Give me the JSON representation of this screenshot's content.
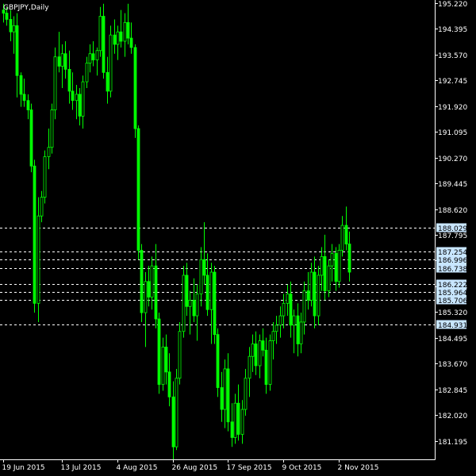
{
  "chart_data": {
    "type": "candlestick",
    "title": "GBPJPY,Daily",
    "symbol": "GBPJPY",
    "timeframe": "Daily",
    "ylim": [
      180.6,
      195.22
    ],
    "y_ticks": [
      "195.220",
      "194.395",
      "193.570",
      "192.745",
      "191.920",
      "191.095",
      "190.270",
      "189.445",
      "188.620",
      "187.795",
      "186.970",
      "186.145",
      "185.320",
      "184.495",
      "183.670",
      "182.845",
      "182.020",
      "181.195"
    ],
    "x_ticks": [
      "19 Jun 2015",
      "13 Jul 2015",
      "4 Aug 2015",
      "26 Aug 2015",
      "17 Sep 2015",
      "9 Oct 2015",
      "2 Nov 2015"
    ],
    "x_tick_index": [
      0,
      17,
      33,
      49,
      65,
      81,
      97
    ],
    "horizontal_levels": [
      "188.029",
      "187.254",
      "186.996",
      "186.738",
      "186.222",
      "185.964",
      "185.706",
      "184.931"
    ],
    "colors": {
      "background": "#000000",
      "candle": "#00ff00",
      "axis": "#ffffff",
      "level_line": "#ffffff",
      "label_box": "#c8e6ff"
    },
    "candles": [
      {
        "o": 195.0,
        "h": 195.2,
        "l": 194.6,
        "c": 194.9
      },
      {
        "o": 194.9,
        "h": 195.1,
        "l": 194.5,
        "c": 194.7
      },
      {
        "o": 194.7,
        "h": 195.0,
        "l": 194.0,
        "c": 194.3
      },
      {
        "o": 194.3,
        "h": 194.8,
        "l": 193.6,
        "c": 194.5
      },
      {
        "o": 194.5,
        "h": 194.9,
        "l": 192.2,
        "c": 192.9
      },
      {
        "o": 192.9,
        "h": 193.0,
        "l": 191.9,
        "c": 192.3
      },
      {
        "o": 192.3,
        "h": 192.8,
        "l": 191.9,
        "c": 192.1
      },
      {
        "o": 192.1,
        "h": 192.3,
        "l": 191.5,
        "c": 191.8
      },
      {
        "o": 191.8,
        "h": 192.0,
        "l": 189.8,
        "c": 190.0
      },
      {
        "o": 190.0,
        "h": 190.2,
        "l": 185.3,
        "c": 185.6
      },
      {
        "o": 185.6,
        "h": 189.0,
        "l": 185.0,
        "c": 188.4
      },
      {
        "o": 188.4,
        "h": 189.2,
        "l": 188.2,
        "c": 189.0
      },
      {
        "o": 189.0,
        "h": 190.5,
        "l": 188.8,
        "c": 190.3
      },
      {
        "o": 190.3,
        "h": 191.2,
        "l": 189.9,
        "c": 190.6
      },
      {
        "o": 190.6,
        "h": 192.0,
        "l": 190.4,
        "c": 191.8
      },
      {
        "o": 191.8,
        "h": 193.8,
        "l": 191.5,
        "c": 193.5
      },
      {
        "o": 193.5,
        "h": 194.3,
        "l": 193.0,
        "c": 193.2
      },
      {
        "o": 193.2,
        "h": 193.9,
        "l": 192.5,
        "c": 193.6
      },
      {
        "o": 193.6,
        "h": 194.0,
        "l": 192.8,
        "c": 193.1
      },
      {
        "o": 193.1,
        "h": 193.7,
        "l": 192.0,
        "c": 192.4
      },
      {
        "o": 192.4,
        "h": 193.0,
        "l": 191.8,
        "c": 192.1
      },
      {
        "o": 192.1,
        "h": 192.6,
        "l": 191.5,
        "c": 192.3
      },
      {
        "o": 192.3,
        "h": 192.5,
        "l": 191.3,
        "c": 191.6
      },
      {
        "o": 191.6,
        "h": 192.9,
        "l": 191.2,
        "c": 192.7
      },
      {
        "o": 192.7,
        "h": 193.5,
        "l": 192.5,
        "c": 193.3
      },
      {
        "o": 193.3,
        "h": 193.9,
        "l": 193.0,
        "c": 193.6
      },
      {
        "o": 193.6,
        "h": 194.0,
        "l": 193.2,
        "c": 193.4
      },
      {
        "o": 193.4,
        "h": 193.8,
        "l": 192.9,
        "c": 193.7
      },
      {
        "o": 193.7,
        "h": 195.1,
        "l": 193.5,
        "c": 194.8
      },
      {
        "o": 194.8,
        "h": 195.2,
        "l": 192.8,
        "c": 193.0
      },
      {
        "o": 193.0,
        "h": 193.5,
        "l": 192.0,
        "c": 192.4
      },
      {
        "o": 192.4,
        "h": 194.5,
        "l": 192.2,
        "c": 194.2
      },
      {
        "o": 194.2,
        "h": 194.7,
        "l": 193.6,
        "c": 193.9
      },
      {
        "o": 193.9,
        "h": 194.5,
        "l": 193.4,
        "c": 194.3
      },
      {
        "o": 194.3,
        "h": 195.0,
        "l": 193.8,
        "c": 194.0
      },
      {
        "o": 194.0,
        "h": 194.9,
        "l": 193.5,
        "c": 194.6
      },
      {
        "o": 194.6,
        "h": 195.2,
        "l": 193.9,
        "c": 194.1
      },
      {
        "o": 194.1,
        "h": 194.6,
        "l": 193.6,
        "c": 193.8
      },
      {
        "o": 193.8,
        "h": 193.9,
        "l": 190.9,
        "c": 191.2
      },
      {
        "o": 191.2,
        "h": 191.3,
        "l": 187.0,
        "c": 187.3
      },
      {
        "o": 187.3,
        "h": 187.5,
        "l": 185.0,
        "c": 185.3
      },
      {
        "o": 185.3,
        "h": 186.6,
        "l": 184.2,
        "c": 186.3
      },
      {
        "o": 186.3,
        "h": 186.8,
        "l": 185.5,
        "c": 185.8
      },
      {
        "o": 185.8,
        "h": 187.1,
        "l": 185.4,
        "c": 186.8
      },
      {
        "o": 186.8,
        "h": 187.5,
        "l": 184.8,
        "c": 185.1
      },
      {
        "o": 185.1,
        "h": 185.3,
        "l": 182.7,
        "c": 183.0
      },
      {
        "o": 183.0,
        "h": 184.5,
        "l": 182.8,
        "c": 184.2
      },
      {
        "o": 184.2,
        "h": 184.6,
        "l": 183.0,
        "c": 183.4
      },
      {
        "o": 183.4,
        "h": 184.0,
        "l": 182.3,
        "c": 182.6
      },
      {
        "o": 182.6,
        "h": 183.1,
        "l": 180.6,
        "c": 181.0
      },
      {
        "o": 181.0,
        "h": 183.5,
        "l": 180.9,
        "c": 183.2
      },
      {
        "o": 183.2,
        "h": 185.0,
        "l": 183.0,
        "c": 184.7
      },
      {
        "o": 184.7,
        "h": 186.8,
        "l": 184.5,
        "c": 186.5
      },
      {
        "o": 186.5,
        "h": 186.9,
        "l": 185.2,
        "c": 185.5
      },
      {
        "o": 185.5,
        "h": 186.0,
        "l": 184.6,
        "c": 185.7
      },
      {
        "o": 185.7,
        "h": 186.4,
        "l": 185.0,
        "c": 185.2
      },
      {
        "o": 185.2,
        "h": 186.2,
        "l": 184.4,
        "c": 185.9
      },
      {
        "o": 185.9,
        "h": 187.4,
        "l": 185.5,
        "c": 187.0
      },
      {
        "o": 187.0,
        "h": 188.2,
        "l": 186.2,
        "c": 186.5
      },
      {
        "o": 186.5,
        "h": 187.2,
        "l": 185.2,
        "c": 185.4
      },
      {
        "o": 185.4,
        "h": 186.9,
        "l": 184.3,
        "c": 186.6
      },
      {
        "o": 186.6,
        "h": 186.8,
        "l": 184.3,
        "c": 184.6
      },
      {
        "o": 184.6,
        "h": 184.8,
        "l": 182.6,
        "c": 182.9
      },
      {
        "o": 182.9,
        "h": 183.4,
        "l": 181.8,
        "c": 182.2
      },
      {
        "o": 182.2,
        "h": 183.8,
        "l": 181.6,
        "c": 183.5
      },
      {
        "o": 183.5,
        "h": 184.0,
        "l": 181.5,
        "c": 181.8
      },
      {
        "o": 181.8,
        "h": 182.4,
        "l": 181.0,
        "c": 181.3
      },
      {
        "o": 181.3,
        "h": 182.7,
        "l": 181.1,
        "c": 182.4
      },
      {
        "o": 182.4,
        "h": 183.0,
        "l": 181.2,
        "c": 181.4
      },
      {
        "o": 181.4,
        "h": 182.5,
        "l": 181.1,
        "c": 182.2
      },
      {
        "o": 182.2,
        "h": 183.5,
        "l": 182.0,
        "c": 183.2
      },
      {
        "o": 183.2,
        "h": 184.2,
        "l": 182.6,
        "c": 183.9
      },
      {
        "o": 183.9,
        "h": 184.6,
        "l": 183.4,
        "c": 184.3
      },
      {
        "o": 184.3,
        "h": 184.7,
        "l": 183.3,
        "c": 183.6
      },
      {
        "o": 183.6,
        "h": 184.6,
        "l": 183.2,
        "c": 184.4
      },
      {
        "o": 184.4,
        "h": 184.8,
        "l": 183.9,
        "c": 184.1
      },
      {
        "o": 184.1,
        "h": 184.5,
        "l": 182.7,
        "c": 183.0
      },
      {
        "o": 183.0,
        "h": 184.6,
        "l": 182.8,
        "c": 184.4
      },
      {
        "o": 184.4,
        "h": 185.0,
        "l": 183.8,
        "c": 184.7
      },
      {
        "o": 184.7,
        "h": 185.2,
        "l": 184.3,
        "c": 184.9
      },
      {
        "o": 184.9,
        "h": 185.5,
        "l": 184.5,
        "c": 185.2
      },
      {
        "o": 185.2,
        "h": 185.9,
        "l": 184.8,
        "c": 185.6
      },
      {
        "o": 185.6,
        "h": 186.2,
        "l": 185.2,
        "c": 185.9
      },
      {
        "o": 185.9,
        "h": 186.3,
        "l": 184.5,
        "c": 184.9
      },
      {
        "o": 184.9,
        "h": 185.4,
        "l": 184.0,
        "c": 185.2
      },
      {
        "o": 185.2,
        "h": 185.6,
        "l": 183.9,
        "c": 184.3
      },
      {
        "o": 184.3,
        "h": 185.3,
        "l": 184.0,
        "c": 185.0
      },
      {
        "o": 185.0,
        "h": 186.3,
        "l": 184.6,
        "c": 186.0
      },
      {
        "o": 186.0,
        "h": 186.6,
        "l": 185.4,
        "c": 185.7
      },
      {
        "o": 185.7,
        "h": 186.9,
        "l": 185.5,
        "c": 186.6
      },
      {
        "o": 186.6,
        "h": 187.1,
        "l": 184.8,
        "c": 185.2
      },
      {
        "o": 185.2,
        "h": 186.8,
        "l": 184.9,
        "c": 186.5
      },
      {
        "o": 186.5,
        "h": 187.4,
        "l": 186.0,
        "c": 187.1
      },
      {
        "o": 187.1,
        "h": 187.8,
        "l": 185.7,
        "c": 186.0
      },
      {
        "o": 186.0,
        "h": 187.0,
        "l": 185.8,
        "c": 186.8
      },
      {
        "o": 186.8,
        "h": 187.5,
        "l": 186.3,
        "c": 187.2
      },
      {
        "o": 187.2,
        "h": 187.4,
        "l": 186.0,
        "c": 186.3
      },
      {
        "o": 186.3,
        "h": 187.5,
        "l": 186.1,
        "c": 187.3
      },
      {
        "o": 187.3,
        "h": 188.4,
        "l": 187.1,
        "c": 188.1
      },
      {
        "o": 188.1,
        "h": 188.7,
        "l": 187.3,
        "c": 187.5
      },
      {
        "o": 187.5,
        "h": 187.9,
        "l": 186.3,
        "c": 186.6
      }
    ]
  }
}
